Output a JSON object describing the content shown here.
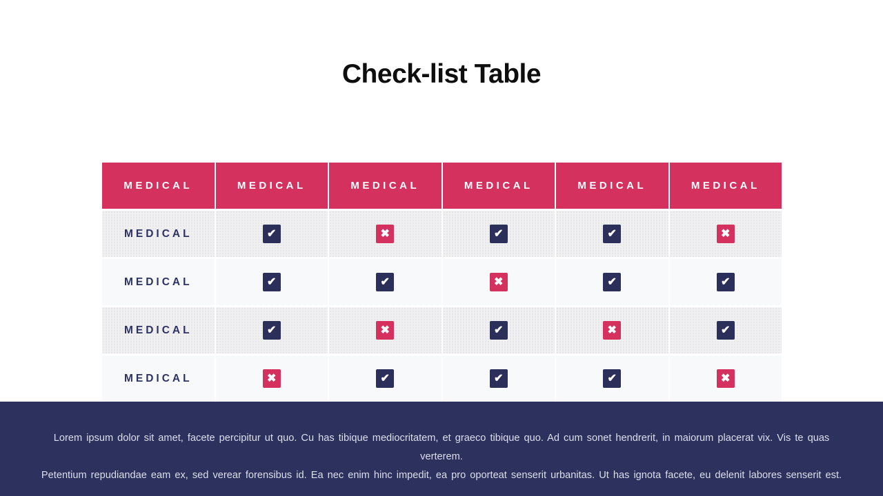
{
  "slide": {
    "title": "Check-list Table"
  },
  "colors": {
    "accent_pink": "#d4315f",
    "accent_navy": "#2b2f5a",
    "footer_background": "#2d315e",
    "row_odd_background": "#f0f0f1",
    "row_even_background": "#f8f9fb",
    "header_text": "#ffffff",
    "row_label_text": "#2e3263",
    "footer_text": "#dcdfec",
    "title_text": "#0e0e0e"
  },
  "table": {
    "headers": [
      "MEDICAL",
      "MEDICAL",
      "MEDICAL",
      "MEDICAL",
      "MEDICAL",
      "MEDICAL"
    ],
    "rows": [
      {
        "label": "MEDICAL",
        "cells": [
          "check",
          "cross",
          "check",
          "check",
          "cross"
        ]
      },
      {
        "label": "MEDICAL",
        "cells": [
          "check",
          "check",
          "cross",
          "check",
          "check"
        ]
      },
      {
        "label": "MEDICAL",
        "cells": [
          "check",
          "cross",
          "check",
          "cross",
          "check"
        ]
      },
      {
        "label": "MEDICAL",
        "cells": [
          "cross",
          "check",
          "check",
          "check",
          "cross"
        ]
      }
    ],
    "icons": {
      "check": "✔",
      "cross": "✖"
    }
  },
  "footer": {
    "line1": "Lorem ipsum dolor sit amet, facete percipitur ut quo. Cu has tibique mediocritatem, et graeco tibique quo. Ad cum sonet hendrerit, in maiorum placerat vix. Vis te quas verterem.",
    "line2": "Petentium repudiandae eam ex, sed verear forensibus id. Ea nec enim hinc impedit, ea pro oporteat senserit urbanitas. Ut has ignota facete, eu delenit labores senserit est."
  }
}
